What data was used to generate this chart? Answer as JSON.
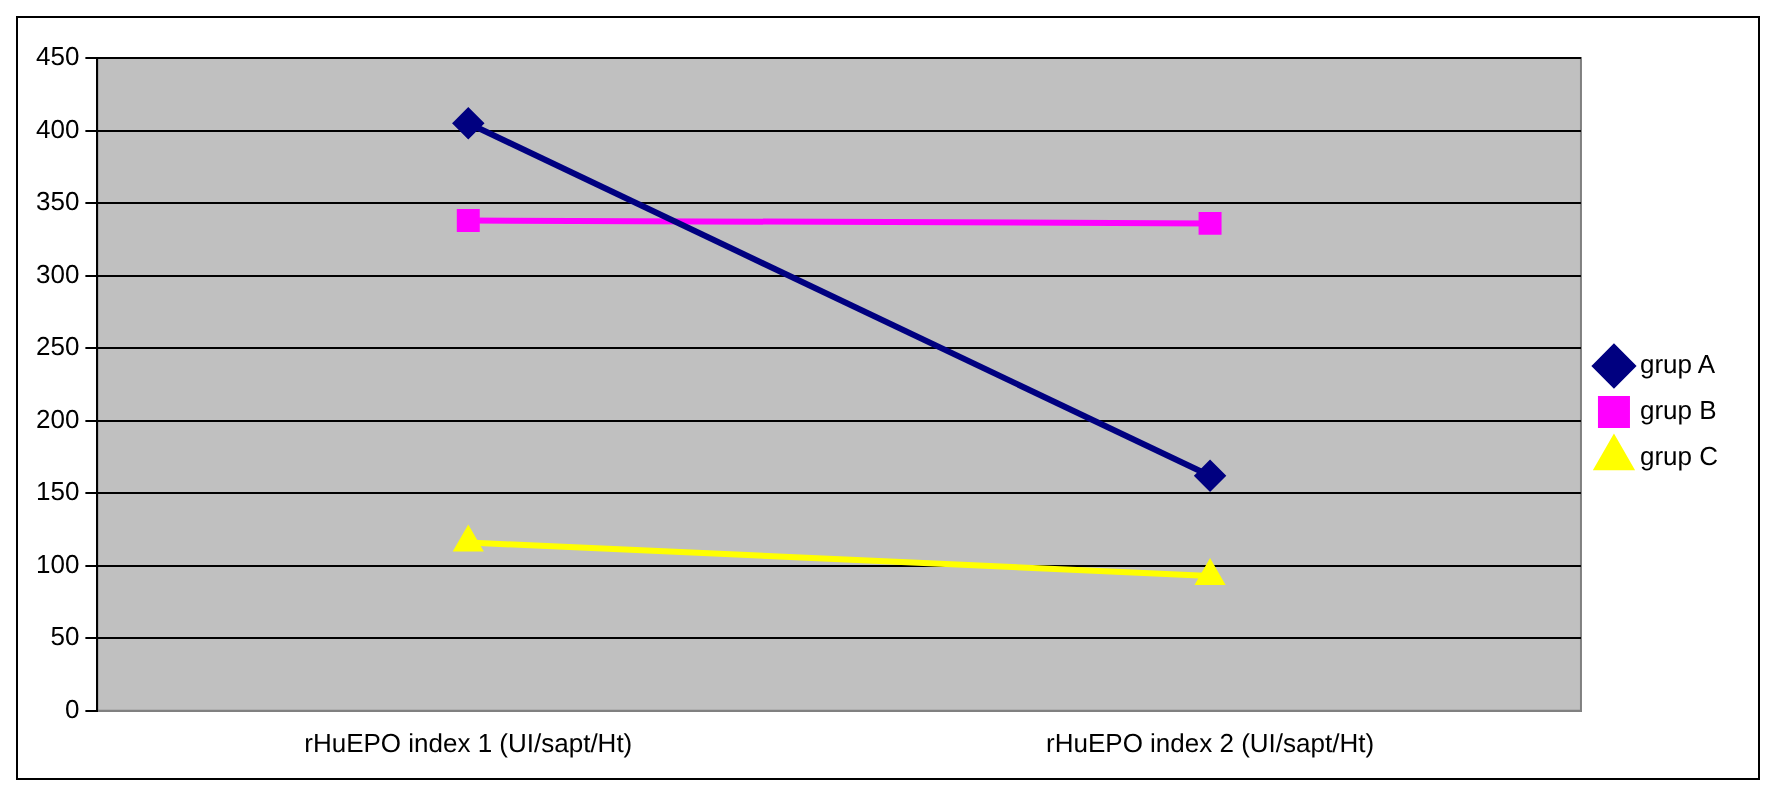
{
  "chart_data": {
    "type": "line",
    "categories": [
      "rHuEPO index 1 (UI/sapt/Ht)",
      "rHuEPO index 2 (UI/sapt/Ht)"
    ],
    "series": [
      {
        "name": "grup A",
        "color": "#000080",
        "values": [
          405,
          162
        ],
        "marker": "diamond"
      },
      {
        "name": "grup B",
        "color": "#ff00ff",
        "values": [
          338,
          336
        ],
        "marker": "square"
      },
      {
        "name": "grup C",
        "color": "#ffff00",
        "values": [
          116,
          93
        ],
        "marker": "triangle"
      }
    ],
    "ylim": [
      0,
      450
    ],
    "yticks": [
      0,
      50,
      100,
      150,
      200,
      250,
      300,
      350,
      400,
      450
    ],
    "grid": "y",
    "legend": "right"
  }
}
